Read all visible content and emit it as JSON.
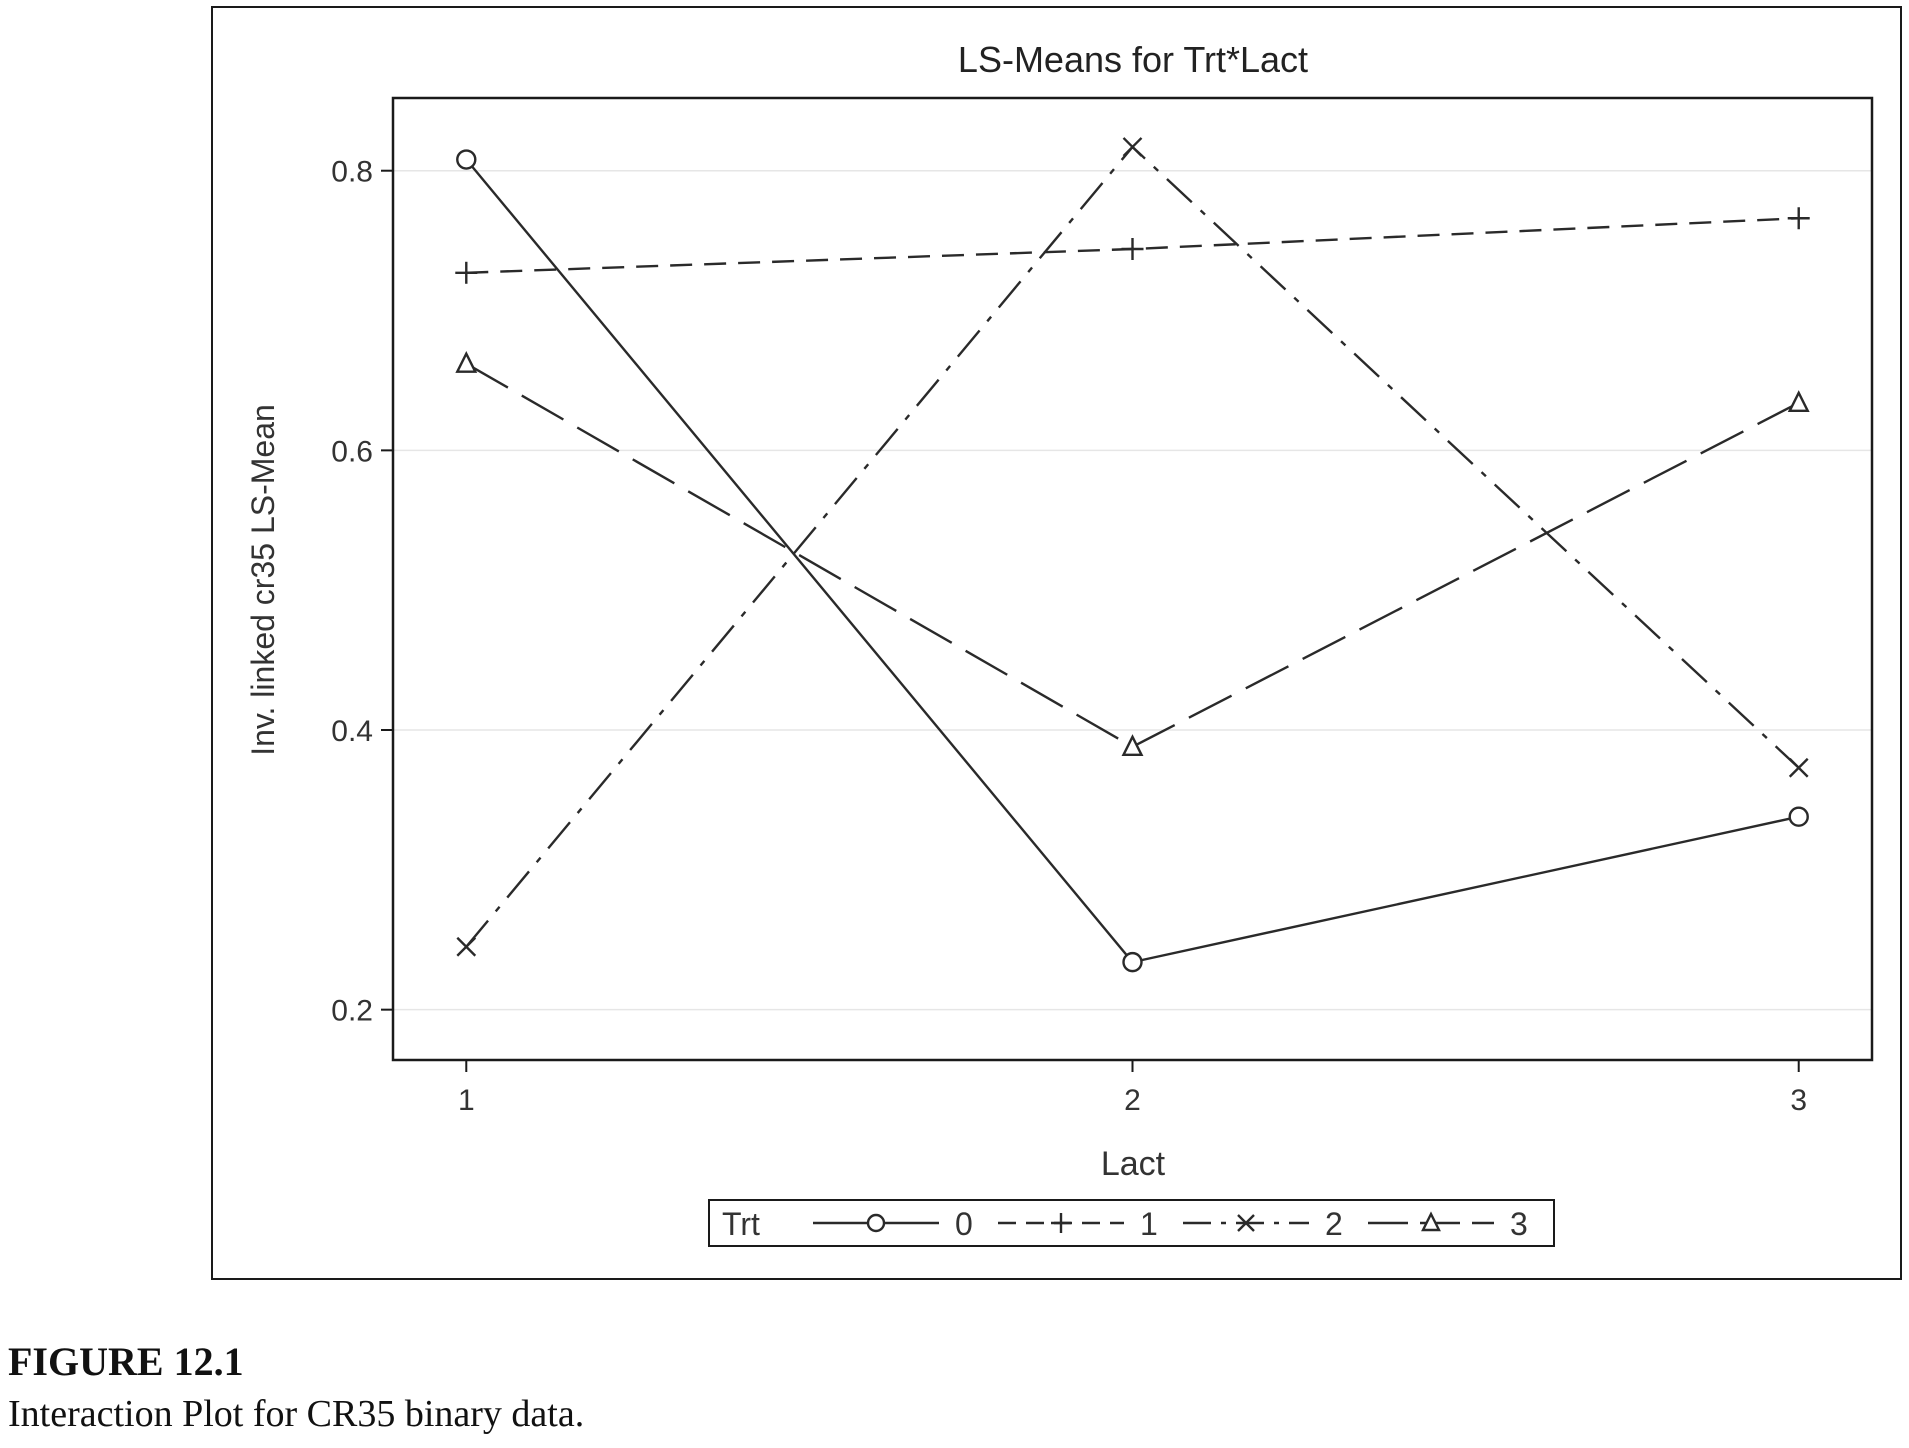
{
  "figure": {
    "label": "FIGURE 12.1",
    "caption": "Interaction Plot for CR35 binary data."
  },
  "chart_data": {
    "type": "line",
    "title": "LS-Means for Trt*Lact",
    "xlabel": "Lact",
    "ylabel": "Inv. linked cr35 LS-Mean",
    "categories": [
      "1",
      "2",
      "3"
    ],
    "x": [
      1,
      2,
      3
    ],
    "xlim": [
      0.89,
      3.11
    ],
    "ylim": [
      0.164,
      0.852
    ],
    "yticks": [
      0.2,
      0.4,
      0.6,
      0.8
    ],
    "ytick_labels": [
      "0.2",
      "0.4",
      "0.6",
      "0.8"
    ],
    "grid": true,
    "legend": {
      "title": "Trt",
      "position": "bottom"
    },
    "series": [
      {
        "name": "0",
        "marker": "circle",
        "dash": "solid",
        "values": [
          0.808,
          0.234,
          0.338
        ]
      },
      {
        "name": "1",
        "marker": "plus",
        "dash": "dash",
        "values": [
          0.727,
          0.744,
          0.766
        ]
      },
      {
        "name": "2",
        "marker": "x",
        "dash": "dashdot",
        "values": [
          0.245,
          0.817,
          0.373
        ]
      },
      {
        "name": "3",
        "marker": "triangle",
        "dash": "longdash",
        "values": [
          0.662,
          0.388,
          0.634
        ]
      }
    ],
    "colors": {
      "line": "#2a2a2a",
      "frame": "#1a1a1a",
      "grid": "#e6e6e6",
      "text": "#333333"
    }
  }
}
